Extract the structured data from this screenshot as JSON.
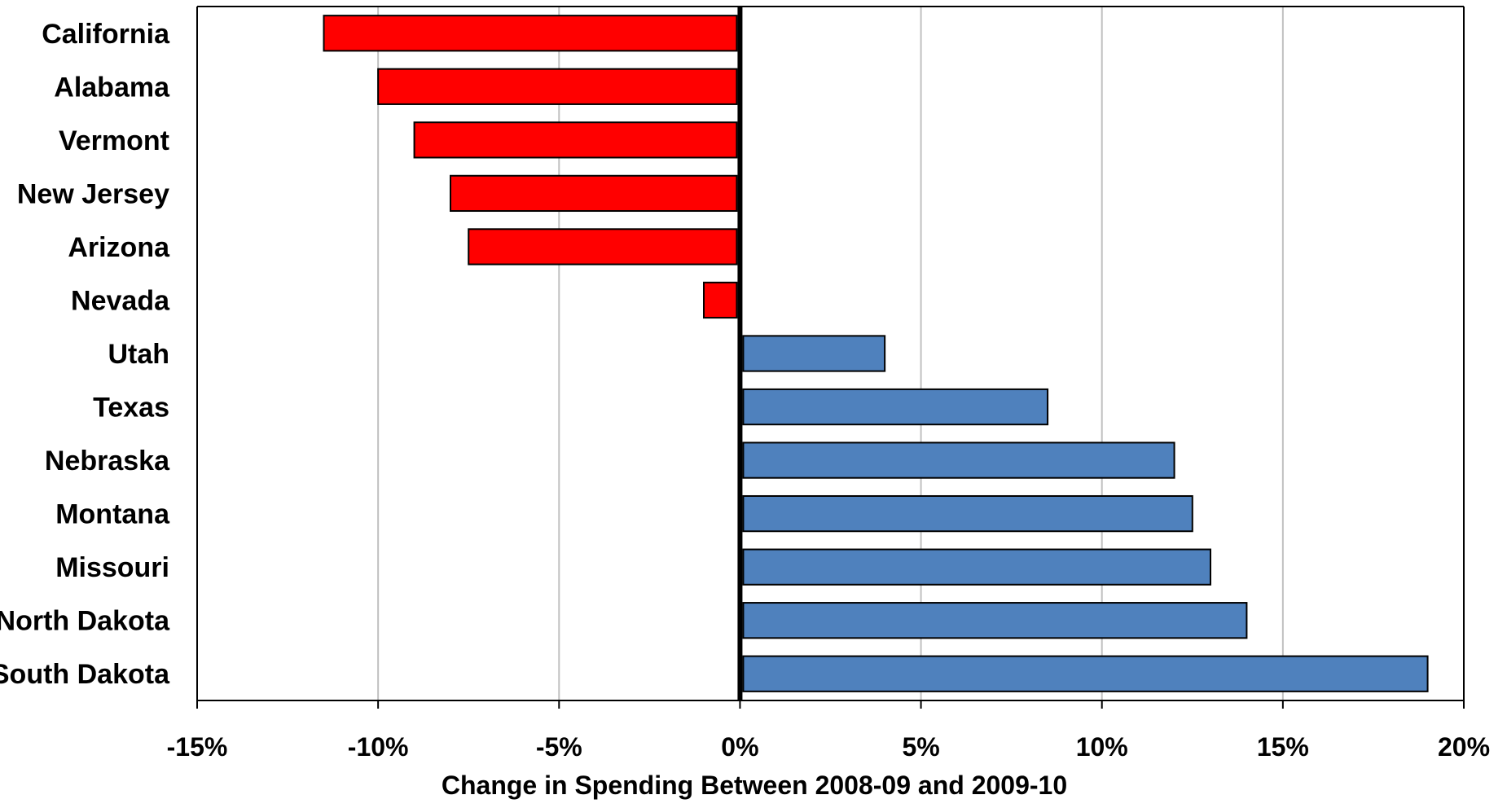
{
  "chart_data": {
    "type": "bar",
    "orientation": "horizontal",
    "title": "",
    "xlabel": "Change in Spending Between 2008-09 and 2009-10",
    "ylabel": "",
    "xlim": [
      -0.15,
      0.2
    ],
    "x_ticks": [
      -0.15,
      -0.1,
      -0.05,
      0.0,
      0.05,
      0.1,
      0.15,
      0.2
    ],
    "x_tick_labels": [
      "-15%",
      "-10%",
      "-5%",
      "0%",
      "5%",
      "10%",
      "15%",
      "20%"
    ],
    "categories": [
      "California",
      "Alabama",
      "Vermont",
      "New Jersey",
      "Arizona",
      "Nevada",
      "Utah",
      "Texas",
      "Nebraska",
      "Montana",
      "Missouri",
      "North Dakota",
      "South Dakota"
    ],
    "values": [
      -0.115,
      -0.1,
      -0.09,
      -0.08,
      -0.075,
      -0.01,
      0.04,
      0.085,
      0.12,
      0.125,
      0.13,
      0.14,
      0.19
    ],
    "grid": "vertical",
    "legend": "none",
    "colors": {
      "negative": "#ff0000",
      "positive": "#4f81bd",
      "bar_outline": "#000000",
      "gridline": "#c0c0c0",
      "zero_line": "#000000"
    }
  }
}
